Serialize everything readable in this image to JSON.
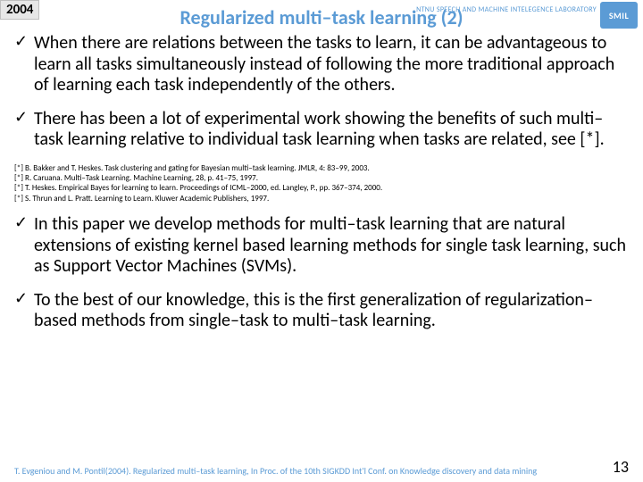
{
  "header": {
    "year": "2004",
    "lab": "NTNU SPEECH AND MACHINE INTELEGENCE LABORATORY",
    "logo_text": "SMIL",
    "title": "Regularized multi–task learning (2)",
    "title_color": "#5b9bd5"
  },
  "bullets": [
    {
      "marker": "✓",
      "text": "When there are relations between the tasks to learn, it can be advantageous to learn all tasks simultaneously instead of following the more traditional approach of learning each task independently of the others."
    },
    {
      "marker": "✓",
      "text": "There has been a lot of experimental work showing the benefits of such multi–task learning relative to individual task learning when tasks are related, see [*]."
    }
  ],
  "references": [
    "[*] B. Bakker and T. Heskes. Task clustering and gating for Bayesian multi–task learning. JMLR, 4: 83–99, 2003.",
    "[*] R. Caruana. Multi–Task Learning. Machine Learning, 28, p. 41–75, 1997.",
    "[*] T. Heskes. Empirical Bayes for learning to learn. Proceedings of ICML–2000, ed. Langley, P., pp. 367–374, 2000.",
    "[*] S. Thrun and L. Pratt. Learning to Learn. Kluwer Academic Publishers, 1997."
  ],
  "bullets2": [
    {
      "marker": "✓",
      "text": "In this paper we develop methods for multi–task learning that are natural extensions of existing kernel based learning methods for single task learning, such as Support Vector Machines (SVMs)."
    },
    {
      "marker": "✓",
      "text": "To the best of our knowledge, this is the first generalization of regularization–based methods from single–task to multi–task learning."
    }
  ],
  "footer": {
    "citation": "T. Evgeniou and M. Pontil(2004). Regularized multi–task learning, In Proc. of the 10th SIGKDD Int'l Conf. on Knowledge discovery and data mining",
    "page": "13",
    "citation_color": "#5b9bd5"
  },
  "style": {
    "background": "#ffffff",
    "body_fontsize": 20,
    "title_fontsize": 22,
    "ref_fontsize": 9,
    "footer_fontsize": 10,
    "page_fontsize": 18
  }
}
